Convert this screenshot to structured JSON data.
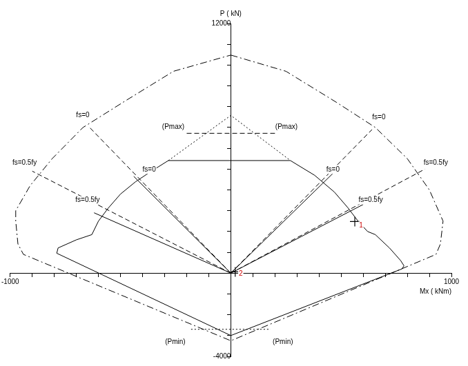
{
  "chart_data": {
    "type": "line",
    "x_label": "Mx ( kNm)",
    "y_label": "P ( kN)",
    "xlim": [
      -1000,
      1000
    ],
    "ylim": [
      -4000,
      12000
    ],
    "xticks": [
      -1000,
      {
        "value": -900,
        "label": null
      },
      {
        "value": -800,
        "label": null
      },
      {
        "value": -700,
        "label": null
      },
      {
        "value": -600,
        "label": null
      },
      {
        "value": -500,
        "label": null
      },
      {
        "value": -400,
        "label": null
      },
      {
        "value": -300,
        "label": null
      },
      {
        "value": -200,
        "label": null
      },
      {
        "value": -100,
        "label": null
      },
      {
        "value": 0,
        "label": null
      },
      {
        "value": 100,
        "label": null
      },
      {
        "value": 200,
        "label": null
      },
      {
        "value": 300,
        "label": null
      },
      {
        "value": 400,
        "label": null
      },
      {
        "value": 500,
        "label": null
      },
      {
        "value": 600,
        "label": null
      },
      {
        "value": 700,
        "label": null
      },
      {
        "value": 800,
        "label": null
      },
      {
        "value": 900,
        "label": null
      },
      1000
    ],
    "yticks": [
      -4000,
      {
        "value": -3000,
        "label": null
      },
      {
        "value": -2000,
        "label": null
      },
      {
        "value": -1000,
        "label": null
      },
      {
        "value": 0,
        "label": null
      },
      {
        "value": 1000,
        "label": null
      },
      {
        "value": 2000,
        "label": null
      },
      {
        "value": 3000,
        "label": null
      },
      {
        "value": 4000,
        "label": null
      },
      {
        "value": 5000,
        "label": null
      },
      {
        "value": 6000,
        "label": null
      },
      {
        "value": 7000,
        "label": null
      },
      {
        "value": 8000,
        "label": null
      },
      {
        "value": 9000,
        "label": null
      },
      {
        "value": 10000,
        "label": null
      },
      {
        "value": 11000,
        "label": null
      },
      12000
    ],
    "grid": false,
    "series": [
      {
        "color": "#000000",
        "line_style": "dashdot",
        "x": [
          0,
          250,
          480,
          655,
          800,
          900,
          962,
          950,
          930,
          0,
          -940,
          -965,
          -975,
          -975,
          -910,
          -810,
          -670,
          -490,
          -260,
          0
        ],
        "values": [
          10480,
          9700,
          8200,
          7000,
          5500,
          4000,
          2500,
          1400,
          900,
          -3250,
          900,
          1400,
          2500,
          3000,
          4200,
          5500,
          7000,
          8200,
          9700,
          10480
        ]
      },
      {
        "color": "#000000",
        "line_style": "solid",
        "x": [
          -283,
          270,
          380,
          469,
          530,
          578,
          620,
          655,
          720,
          770,
          785,
          775,
          0,
          -789,
          -783,
          -700,
          -630,
          -600,
          -556,
          -500,
          -432,
          -360,
          -283
        ],
        "values": [
          5410,
          5410,
          4700,
          3900,
          3150,
          2480,
          2000,
          1850,
          1200,
          600,
          350,
          200,
          -3000,
          955,
          1210,
          1600,
          1850,
          2500,
          3120,
          3800,
          4390,
          4900,
          5410
        ]
      },
      {
        "color": "#000000",
        "line_style": "dashed",
        "x": [
          -200,
          200
        ],
        "values": [
          6720,
          6720
        ]
      },
      {
        "color": "#000000",
        "line_style": "dotted",
        "x": [
          -283,
          0,
          270
        ],
        "values": [
          5410,
          7580,
          5410
        ]
      },
      {
        "color": "#000000",
        "line_style": "dotted",
        "x": [
          -180,
          180
        ],
        "values": [
          -2700,
          -2700
        ]
      },
      {
        "color": "#000000",
        "line_style": "dashed",
        "x": [
          0,
          -640
        ],
        "values": [
          0,
          7000
        ]
      },
      {
        "color": "#000000",
        "line_style": "dashed",
        "x": [
          0,
          -900
        ],
        "values": [
          0,
          4900
        ]
      },
      {
        "color": "#000000",
        "line_style": "solid",
        "x": [
          0,
          -440
        ],
        "values": [
          0,
          4650
        ]
      },
      {
        "color": "#000000",
        "line_style": "solid",
        "x": [
          0,
          -620
        ],
        "values": [
          0,
          2900
        ]
      },
      {
        "color": "#000000",
        "line_style": "dashed",
        "x": [
          0,
          640
        ],
        "values": [
          0,
          6900
        ]
      },
      {
        "color": "#000000",
        "line_style": "dashed",
        "x": [
          0,
          880
        ],
        "values": [
          0,
          5000
        ]
      },
      {
        "color": "#000000",
        "line_style": "solid",
        "x": [
          0,
          470
        ],
        "values": [
          0,
          4870
        ]
      },
      {
        "color": "#000000",
        "line_style": "solid",
        "x": [
          0,
          600
        ],
        "values": [
          0,
          3300
        ]
      },
      {
        "color": "#000000",
        "type": "scatter",
        "marker": "cross",
        "x": [
          562
        ],
        "values": [
          2480
        ]
      },
      {
        "color": "#000000",
        "type": "scatter",
        "marker": "cross",
        "x": [
          20
        ],
        "values": [
          60
        ]
      }
    ],
    "annotations": [
      {
        "text": "fs=0",
        "x": -671,
        "y": 7580
      },
      {
        "text": "fs=0.5fy",
        "x": -935,
        "y": 5290
      },
      {
        "text": "fs=0",
        "x": -370,
        "y": 4970
      },
      {
        "text": "fs=0.5fy",
        "x": -649,
        "y": 3500
      },
      {
        "text": "fs=0",
        "x": 671,
        "y": 7480
      },
      {
        "text": "fs=0.5fy",
        "x": 929,
        "y": 5290
      },
      {
        "text": "fs=0",
        "x": 463,
        "y": 4970
      },
      {
        "text": "fs=0.5fy",
        "x": 634,
        "y": 3500
      },
      {
        "text": "(Pmax)",
        "x": -261,
        "y": 7010
      },
      {
        "text": "(Pmax)",
        "x": 252,
        "y": 7010
      },
      {
        "text": "(Pmin)",
        "x": -252,
        "y": -3310
      },
      {
        "text": "(Pmin)",
        "x": 236,
        "y": -3310
      },
      {
        "text": "1",
        "x": 590,
        "y": 2280,
        "color": "#cc0000"
      },
      {
        "text": "2",
        "x": 45,
        "y": -20,
        "color": "#cc0000"
      }
    ]
  }
}
